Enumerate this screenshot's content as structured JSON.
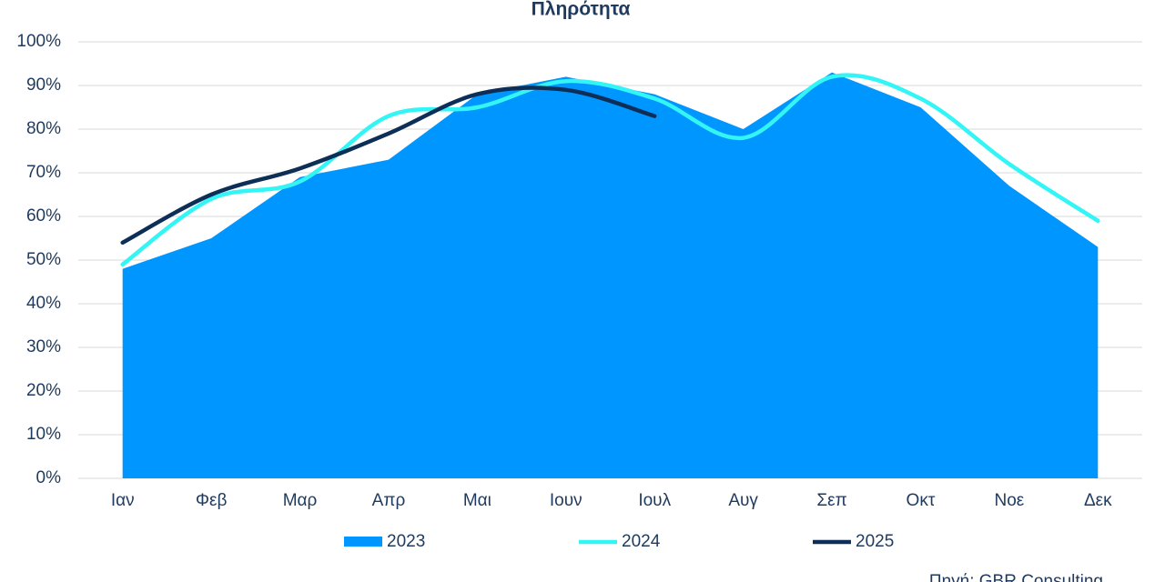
{
  "chart_data": {
    "type": "area_line",
    "title": "Πληρότητα",
    "categories": [
      "Ιαν",
      "Φεβ",
      "Μαρ",
      "Απρ",
      "Μαι",
      "Ιουν",
      "Ιουλ",
      "Αυγ",
      "Σεπ",
      "Οκτ",
      "Νοε",
      "Δεκ"
    ],
    "series": [
      {
        "name": "2023",
        "type": "area",
        "color": "#0096ff",
        "values": [
          48,
          55,
          69,
          73,
          88,
          92,
          88,
          80,
          93,
          85,
          67,
          53
        ]
      },
      {
        "name": "2024",
        "type": "line",
        "color": "#33f5f5",
        "values": [
          49,
          64,
          68,
          83,
          85,
          91,
          87,
          78,
          92,
          87,
          72,
          59
        ]
      },
      {
        "name": "2025",
        "type": "line",
        "color": "#0d2e57",
        "values": [
          54,
          65,
          71,
          79,
          88,
          89,
          83,
          null,
          null,
          null,
          null,
          null
        ]
      }
    ],
    "ylim": [
      0,
      100
    ],
    "yticks": [
      {
        "value": 0,
        "label": "0%"
      },
      {
        "value": 10,
        "label": "10%"
      },
      {
        "value": 20,
        "label": "20%"
      },
      {
        "value": 30,
        "label": "30%"
      },
      {
        "value": 40,
        "label": "40%"
      },
      {
        "value": 50,
        "label": "50%"
      },
      {
        "value": 60,
        "label": "60%"
      },
      {
        "value": 70,
        "label": "70%"
      },
      {
        "value": 80,
        "label": "80%"
      },
      {
        "value": 90,
        "label": "90%"
      },
      {
        "value": 100,
        "label": "100%"
      }
    ],
    "grid": true,
    "legend": "bottom",
    "source": "Πηγή: GBR Consulting"
  }
}
